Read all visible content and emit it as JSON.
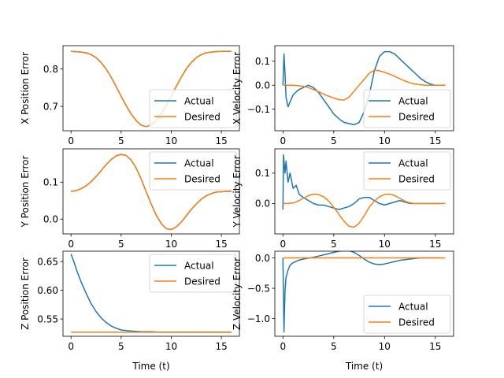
{
  "colors": {
    "actual": "#1f77b4",
    "desired": "#ff7f0e"
  },
  "chart_data": [
    {
      "id": "x-position-error",
      "type": "line",
      "xlabel": "",
      "ylabel": "X Position Error",
      "xlim": [
        -0.8,
        16.8
      ],
      "ylim": [
        0.635,
        0.862
      ],
      "xticks": [
        0,
        5,
        10,
        15
      ],
      "yticks": [
        0.7,
        0.8
      ],
      "ytick_labels": [
        "0.7",
        "0.8"
      ],
      "legend": "lower-right",
      "series": [
        {
          "name": "Actual",
          "color_key": "actual",
          "x": [
            0,
            0.5,
            1,
            1.5,
            2,
            2.5,
            3,
            3.5,
            4,
            4.5,
            5,
            5.5,
            6,
            6.5,
            7,
            7.5,
            8,
            8.5,
            9,
            9.5,
            10,
            10.5,
            11,
            11.5,
            12,
            12.5,
            13,
            13.5,
            14,
            14.5,
            15,
            15.5,
            16
          ],
          "y": [
            0.847,
            0.846,
            0.845,
            0.843,
            0.838,
            0.83,
            0.817,
            0.8,
            0.778,
            0.753,
            0.727,
            0.702,
            0.68,
            0.662,
            0.65,
            0.646,
            0.65,
            0.662,
            0.68,
            0.702,
            0.727,
            0.753,
            0.778,
            0.8,
            0.817,
            0.83,
            0.838,
            0.843,
            0.845,
            0.846,
            0.847,
            0.847,
            0.847
          ]
        },
        {
          "name": "Desired",
          "color_key": "desired",
          "x": [
            0,
            0.5,
            1,
            1.5,
            2,
            2.5,
            3,
            3.5,
            4,
            4.5,
            5,
            5.5,
            6,
            6.5,
            7,
            7.5,
            8,
            8.5,
            9,
            9.5,
            10,
            10.5,
            11,
            11.5,
            12,
            12.5,
            13,
            13.5,
            14,
            14.5,
            15,
            15.5,
            16
          ],
          "y": [
            0.847,
            0.846,
            0.845,
            0.843,
            0.838,
            0.83,
            0.817,
            0.8,
            0.778,
            0.753,
            0.727,
            0.702,
            0.68,
            0.662,
            0.65,
            0.646,
            0.65,
            0.662,
            0.68,
            0.702,
            0.727,
            0.753,
            0.778,
            0.8,
            0.817,
            0.83,
            0.838,
            0.843,
            0.845,
            0.846,
            0.847,
            0.847,
            0.847
          ]
        }
      ]
    },
    {
      "id": "x-velocity-error",
      "type": "line",
      "xlabel": "",
      "ylabel": "X Velocity Error",
      "xlim": [
        -0.8,
        16.8
      ],
      "ylim": [
        -0.19,
        0.165
      ],
      "xticks": [
        0,
        5,
        10,
        15
      ],
      "yticks": [
        -0.1,
        0.0,
        0.1
      ],
      "ytick_labels": [
        "−0.1",
        "0.0",
        "0.1"
      ],
      "legend": "lower-right",
      "series": [
        {
          "name": "Actual",
          "color_key": "actual",
          "x": [
            0,
            0.1,
            0.2,
            0.3,
            0.5,
            0.8,
            1,
            1.5,
            2,
            2.5,
            3,
            3.5,
            4,
            4.5,
            5,
            5.5,
            6,
            6.5,
            7,
            7.5,
            8,
            8.5,
            9,
            9.5,
            10,
            10.5,
            11,
            11.5,
            12,
            12.5,
            13,
            13.5,
            14,
            14.5,
            15,
            15.5
          ],
          "y": [
            0.0,
            0.13,
            0.05,
            -0.05,
            -0.09,
            -0.06,
            -0.04,
            -0.02,
            -0.01,
            0.0,
            -0.01,
            -0.03,
            -0.06,
            -0.09,
            -0.12,
            -0.14,
            -0.155,
            -0.16,
            -0.165,
            -0.155,
            -0.11,
            -0.04,
            0.06,
            0.12,
            0.14,
            0.14,
            0.13,
            0.11,
            0.09,
            0.07,
            0.05,
            0.03,
            0.015,
            0.005,
            0.0,
            0.0
          ]
        },
        {
          "name": "Desired",
          "color_key": "desired",
          "x": [
            0,
            0.5,
            1,
            1.5,
            2,
            2.5,
            3,
            3.5,
            4,
            4.5,
            5,
            5.5,
            6,
            6.5,
            7,
            7.5,
            8,
            8.5,
            9,
            9.5,
            10,
            10.5,
            11,
            11.5,
            12,
            12.5,
            13,
            13.5,
            14,
            14.5,
            15,
            15.5,
            16
          ],
          "y": [
            0.0,
            0.0,
            0.0,
            -0.002,
            -0.005,
            -0.01,
            -0.018,
            -0.027,
            -0.037,
            -0.046,
            -0.054,
            -0.06,
            -0.062,
            -0.05,
            -0.025,
            0.0,
            0.025,
            0.05,
            0.062,
            0.06,
            0.054,
            0.046,
            0.037,
            0.027,
            0.018,
            0.01,
            0.005,
            0.002,
            0.0,
            0.0,
            0.0,
            0.0,
            0.0
          ]
        }
      ]
    },
    {
      "id": "y-position-error",
      "type": "line",
      "xlabel": "",
      "ylabel": "Y Position Error",
      "xlim": [
        -0.8,
        16.8
      ],
      "ylim": [
        -0.04,
        0.19
      ],
      "xticks": [
        0,
        5,
        10,
        15
      ],
      "yticks": [
        0.0,
        0.1
      ],
      "ytick_labels": [
        "0.0",
        "0.1"
      ],
      "legend": "upper-right",
      "series": [
        {
          "name": "Actual",
          "color_key": "actual",
          "x": [
            0,
            0.5,
            1,
            1.5,
            2,
            2.5,
            3,
            3.5,
            4,
            4.5,
            5,
            5.5,
            6,
            6.5,
            7,
            7.5,
            8,
            8.5,
            9,
            9.5,
            10,
            10.5,
            11,
            11.5,
            12,
            12.5,
            13,
            13.5,
            14,
            14.5,
            15,
            15.5,
            16
          ],
          "y": [
            0.075,
            0.077,
            0.082,
            0.09,
            0.101,
            0.115,
            0.131,
            0.147,
            0.161,
            0.171,
            0.175,
            0.172,
            0.16,
            0.138,
            0.108,
            0.074,
            0.041,
            0.011,
            -0.012,
            -0.026,
            -0.028,
            -0.021,
            -0.008,
            0.009,
            0.026,
            0.041,
            0.054,
            0.063,
            0.069,
            0.073,
            0.074,
            0.075,
            0.075
          ]
        },
        {
          "name": "Desired",
          "color_key": "desired",
          "x": [
            0,
            0.5,
            1,
            1.5,
            2,
            2.5,
            3,
            3.5,
            4,
            4.5,
            5,
            5.5,
            6,
            6.5,
            7,
            7.5,
            8,
            8.5,
            9,
            9.5,
            10,
            10.5,
            11,
            11.5,
            12,
            12.5,
            13,
            13.5,
            14,
            14.5,
            15,
            15.5,
            16
          ],
          "y": [
            0.075,
            0.077,
            0.082,
            0.09,
            0.101,
            0.115,
            0.131,
            0.147,
            0.161,
            0.171,
            0.175,
            0.172,
            0.16,
            0.138,
            0.108,
            0.074,
            0.041,
            0.011,
            -0.012,
            -0.026,
            -0.028,
            -0.021,
            -0.008,
            0.009,
            0.026,
            0.041,
            0.054,
            0.063,
            0.069,
            0.073,
            0.074,
            0.075,
            0.075
          ]
        }
      ]
    },
    {
      "id": "y-velocity-error",
      "type": "line",
      "xlabel": "",
      "ylabel": "Y Velocity Error",
      "xlim": [
        -0.8,
        16.8
      ],
      "ylim": [
        -0.1,
        0.18
      ],
      "xticks": [
        0,
        5,
        10,
        15
      ],
      "yticks": [
        0.0,
        0.1
      ],
      "ytick_labels": [
        "0.0",
        "0.1"
      ],
      "legend": "upper-right",
      "series": [
        {
          "name": "Actual",
          "color_key": "actual",
          "x": [
            0,
            0.05,
            0.2,
            0.3,
            0.5,
            0.7,
            1,
            1.3,
            1.6,
            2,
            2.5,
            3,
            3.5,
            4,
            4.5,
            5,
            5.5,
            6,
            6.5,
            7,
            7.5,
            8,
            8.5,
            9,
            9.5,
            10,
            10.5,
            11,
            11.5,
            12,
            12.5,
            13,
            13.5,
            14,
            14.5,
            15,
            15.5
          ],
          "y": [
            -0.02,
            0.16,
            0.1,
            0.14,
            0.07,
            0.1,
            0.05,
            0.06,
            0.03,
            0.02,
            0.01,
            0.0,
            -0.005,
            -0.005,
            -0.01,
            -0.015,
            -0.02,
            -0.015,
            -0.01,
            0.0,
            0.015,
            0.02,
            0.02,
            0.01,
            0.0,
            -0.005,
            0.0,
            0.005,
            0.01,
            0.005,
            0.0,
            0.0,
            0.0,
            0.0,
            0.0,
            0.0,
            0.0
          ]
        },
        {
          "name": "Desired",
          "color_key": "desired",
          "x": [
            0,
            0.5,
            1,
            1.5,
            2,
            2.5,
            3,
            3.5,
            4,
            4.5,
            5,
            5.5,
            6,
            6.5,
            7,
            7.5,
            8,
            8.5,
            9,
            9.5,
            10,
            10.5,
            11,
            11.5,
            12,
            12.5,
            13,
            13.5,
            14,
            14.5,
            15,
            15.5,
            16
          ],
          "y": [
            0.0,
            0.0,
            0.002,
            0.008,
            0.017,
            0.026,
            0.031,
            0.03,
            0.022,
            0.008,
            -0.012,
            -0.035,
            -0.058,
            -0.075,
            -0.078,
            -0.065,
            -0.04,
            -0.012,
            0.008,
            0.022,
            0.03,
            0.031,
            0.026,
            0.017,
            0.008,
            0.002,
            0.0,
            0.0,
            0.0,
            0.0,
            0.0,
            0.0,
            0.0
          ]
        }
      ]
    },
    {
      "id": "z-position-error",
      "type": "line",
      "xlabel": "Time (t)",
      "ylabel": "Z Position Error",
      "xlim": [
        -0.8,
        16.8
      ],
      "ylim": [
        0.52,
        0.668
      ],
      "xticks": [
        0,
        5,
        10,
        15
      ],
      "yticks": [
        0.55,
        0.6,
        0.65
      ],
      "ytick_labels": [
        "0.55",
        "0.60",
        "0.65"
      ],
      "legend": "upper-right",
      "series": [
        {
          "name": "Actual",
          "color_key": "actual",
          "x": [
            0,
            0.3,
            0.6,
            1,
            1.5,
            2,
            2.5,
            3,
            3.5,
            4,
            4.5,
            5,
            5.5,
            6,
            7,
            8,
            9,
            10,
            11,
            12,
            13,
            14,
            15,
            16
          ],
          "y": [
            0.663,
            0.649,
            0.633,
            0.615,
            0.595,
            0.577,
            0.563,
            0.552,
            0.544,
            0.538,
            0.534,
            0.531,
            0.53,
            0.529,
            0.528,
            0.528,
            0.527,
            0.527,
            0.527,
            0.527,
            0.527,
            0.527,
            0.527,
            0.527
          ]
        },
        {
          "name": "Desired",
          "color_key": "desired",
          "x": [
            0,
            16
          ],
          "y": [
            0.527,
            0.527
          ]
        }
      ]
    },
    {
      "id": "z-velocity-error",
      "type": "line",
      "xlabel": "Time (t)",
      "ylabel": "Z Velocity Error",
      "xlim": [
        -0.8,
        16.8
      ],
      "ylim": [
        -1.29,
        0.11
      ],
      "xticks": [
        0,
        5,
        10,
        15
      ],
      "yticks": [
        -1.0,
        -0.5,
        0.0
      ],
      "ytick_labels": [
        "−1.0",
        "−0.5",
        "0.0"
      ],
      "legend": "lower-right",
      "series": [
        {
          "name": "Actual",
          "color_key": "actual",
          "x": [
            0,
            0.1,
            0.2,
            0.3,
            0.5,
            0.7,
            1,
            1.5,
            2,
            2.5,
            3,
            3.5,
            4,
            4.5,
            5,
            5.5,
            6,
            6.5,
            7,
            7.5,
            8,
            8.5,
            9,
            9.5,
            10,
            10.5,
            11,
            11.5,
            12,
            12.5,
            13,
            13.5,
            14,
            14.5,
            15,
            15.5
          ],
          "y": [
            0.0,
            -1.22,
            -0.55,
            -0.32,
            -0.2,
            -0.12,
            -0.08,
            -0.04,
            -0.02,
            -0.005,
            0.01,
            0.03,
            0.05,
            0.07,
            0.09,
            0.11,
            0.12,
            0.12,
            0.09,
            0.04,
            -0.02,
            -0.07,
            -0.1,
            -0.11,
            -0.1,
            -0.08,
            -0.06,
            -0.04,
            -0.03,
            -0.02,
            -0.01,
            0.0,
            0.0,
            0.0,
            0.0,
            0.0
          ]
        },
        {
          "name": "Desired",
          "color_key": "desired",
          "x": [
            0,
            16
          ],
          "y": [
            0.0,
            0.0
          ]
        }
      ]
    }
  ]
}
